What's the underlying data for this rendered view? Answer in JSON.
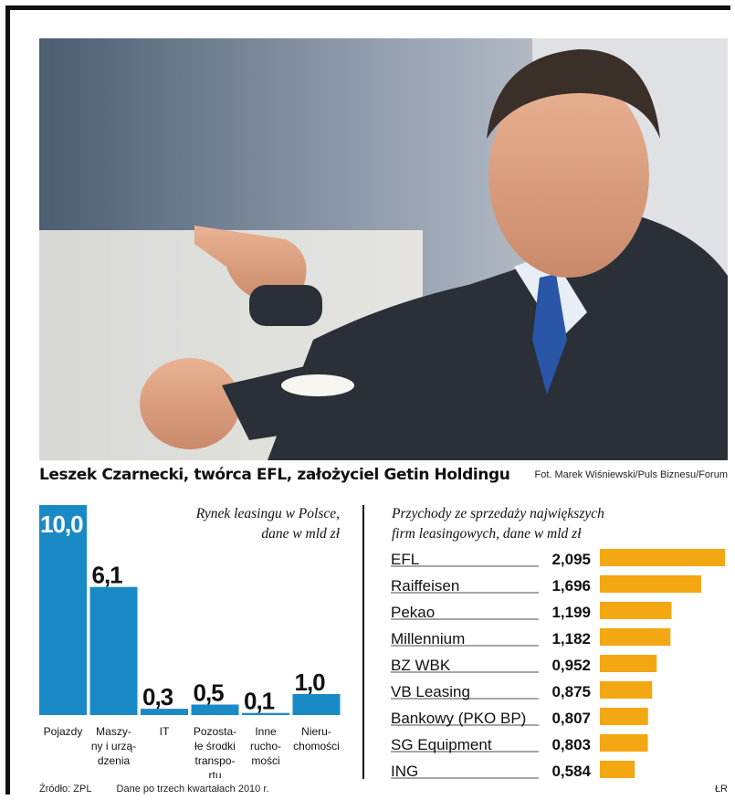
{
  "caption": "Leszek Czarnecki, twórca EFL, założyciel Getin Holdingu",
  "photo_credit": "Fot. Marek Wiśniewski/Puls Biznesu/Forum",
  "source": "Źródło: ZPL",
  "note": "Dane po trzech kwartałach 2010 r.",
  "initials": "ŁR",
  "colors": {
    "bar_blue": "#1a8ac6",
    "bar_orange": "#f3a712"
  },
  "chart_data": [
    {
      "type": "bar",
      "title": "Rynek leasingu w Polsce, dane w mld zł",
      "title_lines": [
        "Rynek leasingu w Polsce,",
        "dane w mld zł"
      ],
      "categories": [
        "Pojazdy",
        "Maszyny i urządzenia",
        "IT",
        "Pozostałe środki transportu",
        "Inne ruchomości",
        "Nieruchomości"
      ],
      "category_lines": [
        [
          "Pojazdy"
        ],
        [
          "Maszy-",
          "ny i urzą-",
          "dzenia"
        ],
        [
          "IT"
        ],
        [
          "Pozosta-",
          "łe środki",
          "transpo-",
          "rtu"
        ],
        [
          "Inne",
          "rucho-",
          "mości"
        ],
        [
          "Nieru-",
          "chomości"
        ]
      ],
      "values": [
        10.0,
        6.1,
        0.3,
        0.5,
        0.1,
        1.0
      ],
      "value_labels": [
        "10,0",
        "6,1",
        "0,3",
        "0,5",
        "0,1",
        "1,0"
      ],
      "ylim": [
        0,
        10.0
      ],
      "xlabel": "",
      "ylabel": ""
    },
    {
      "type": "bar",
      "orientation": "horizontal",
      "title": "Przychody ze sprzedaży największych firm leasingowych, dane w mld zł",
      "title_lines": [
        "Przychody ze sprzedaży największych",
        "firm leasingowych, dane w mld zł"
      ],
      "categories": [
        "EFL",
        "Raiffeisen",
        "Pekao",
        "Millennium",
        "BZ WBK",
        "VB Leasing",
        "Bankowy (PKO BP)",
        "SG Equipment",
        "ING"
      ],
      "values": [
        2.095,
        1.696,
        1.199,
        1.182,
        0.952,
        0.875,
        0.807,
        0.803,
        0.584
      ],
      "value_labels": [
        "2,095",
        "1,696",
        "1,199",
        "1,182",
        "0,952",
        "0,875",
        "0,807",
        "0,803",
        "0,584"
      ],
      "xlim": [
        0,
        2.095
      ]
    }
  ]
}
